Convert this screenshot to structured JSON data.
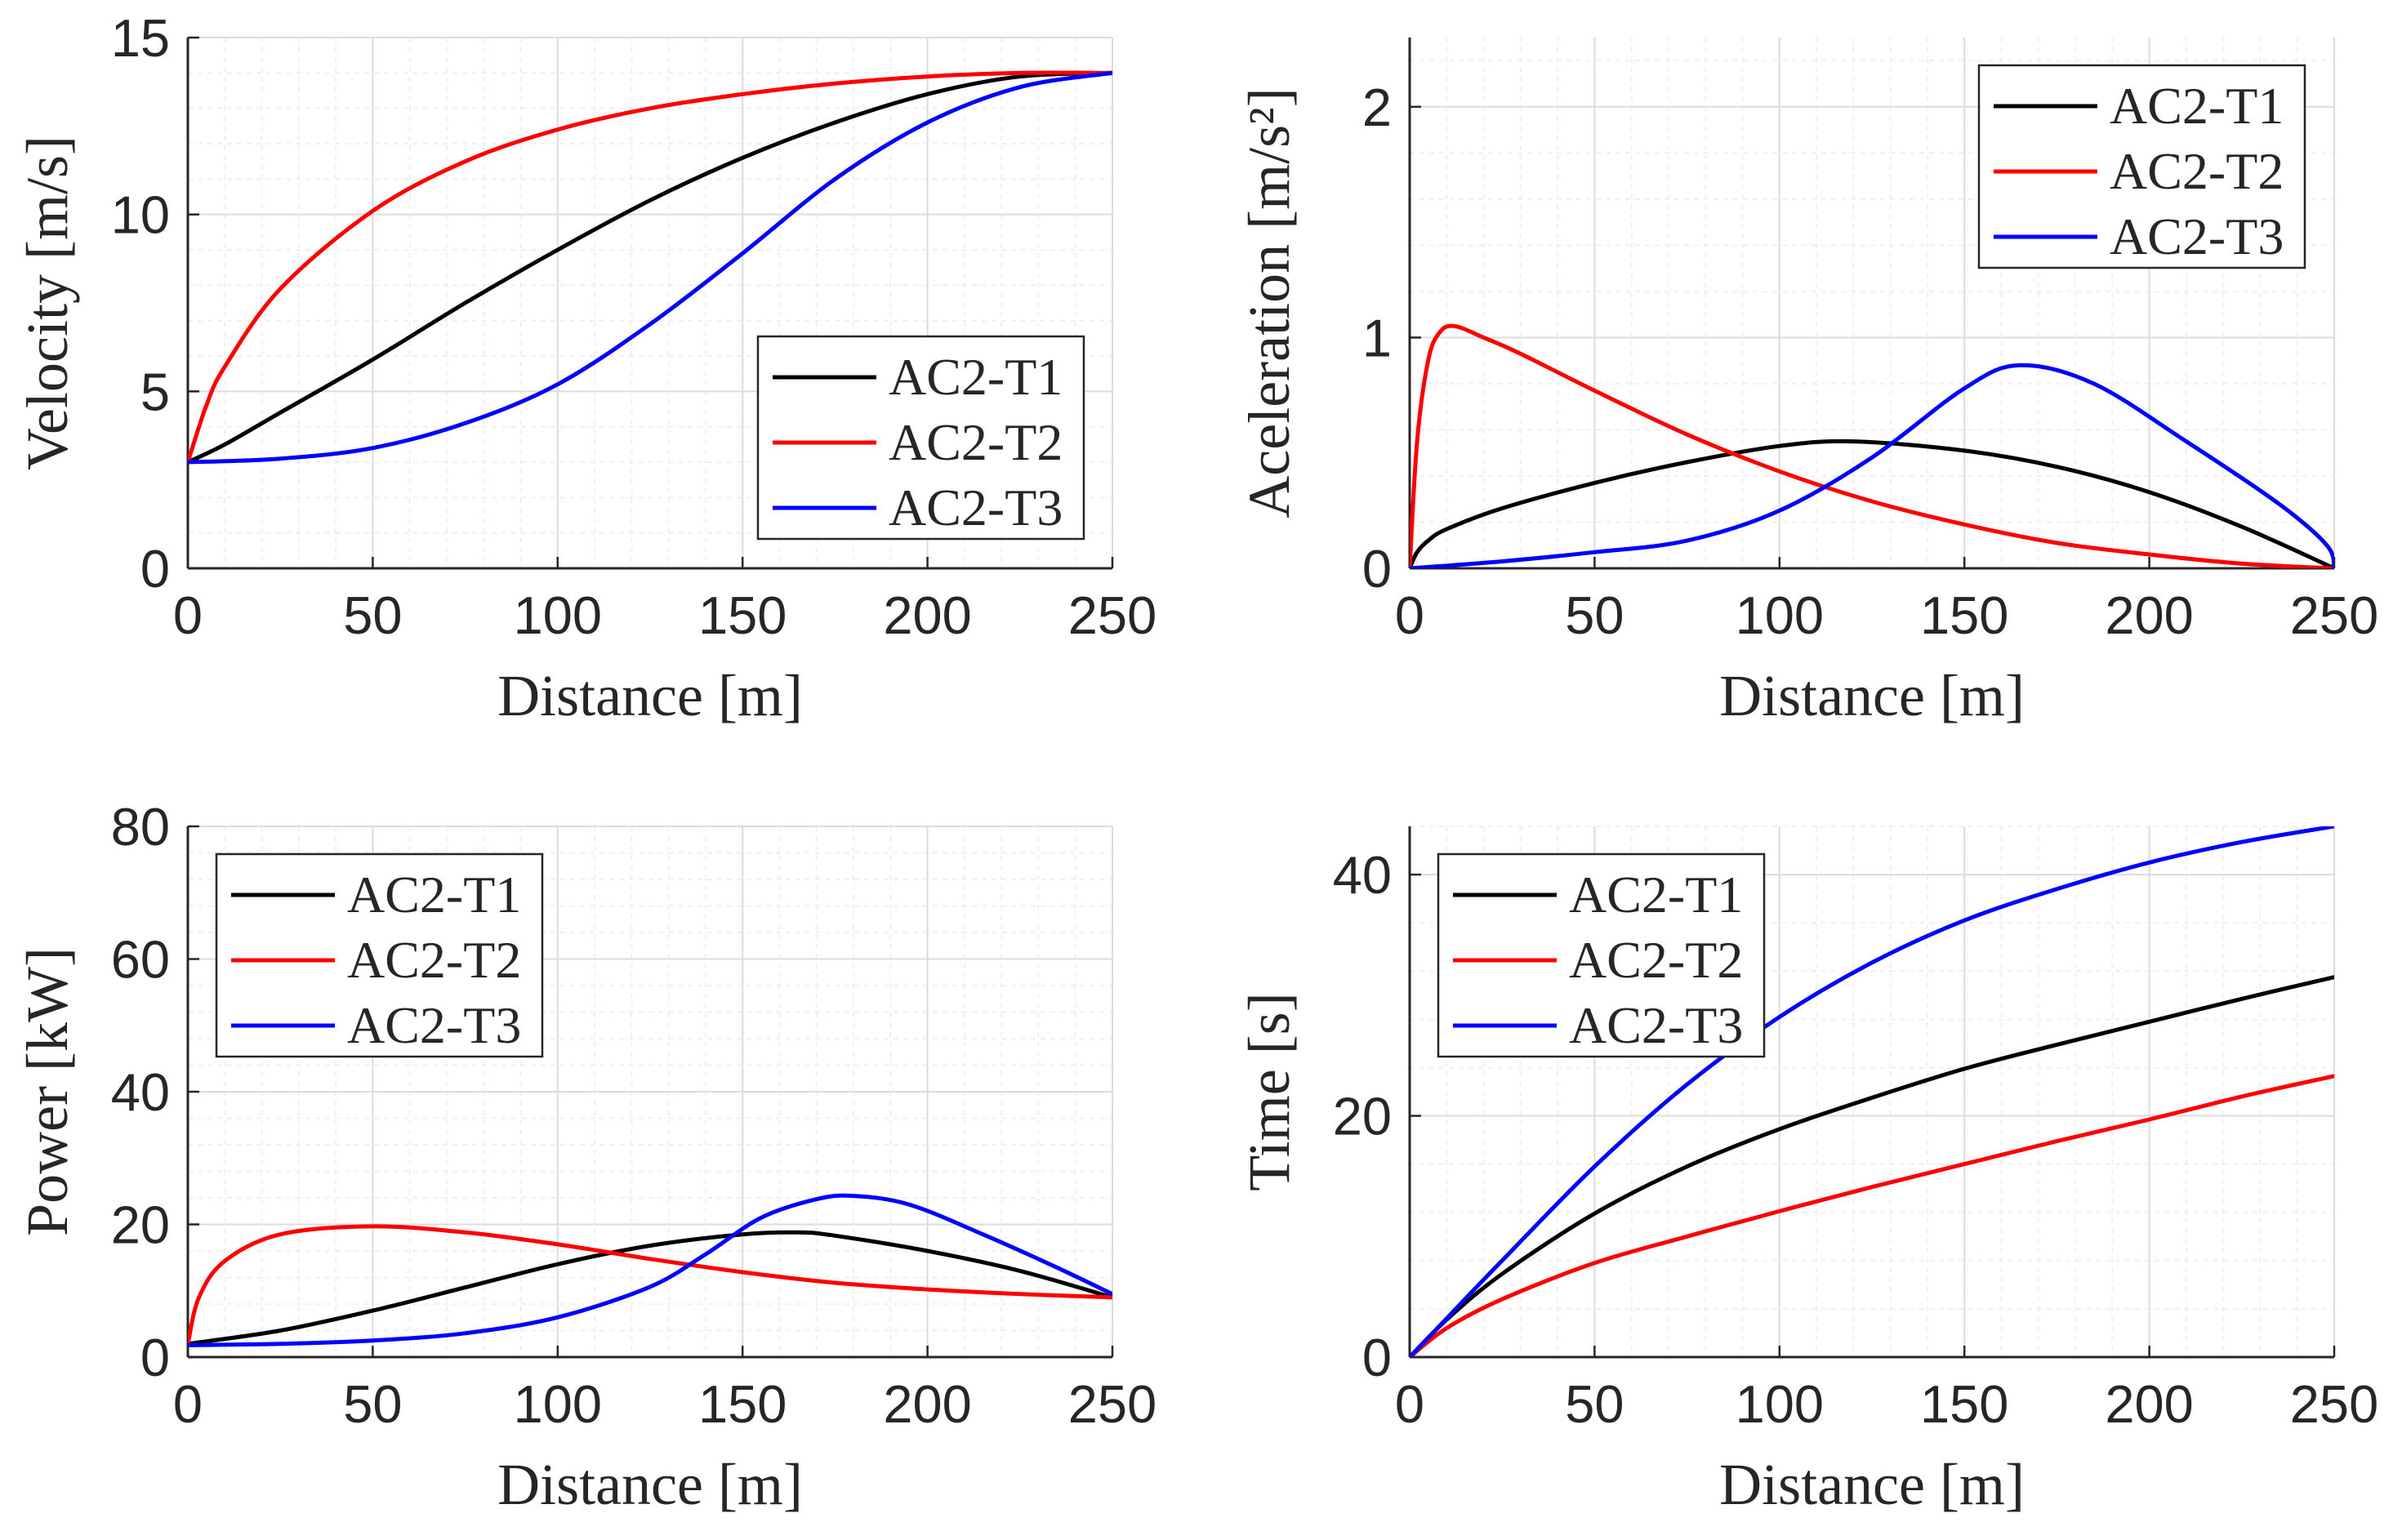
{
  "colors": {
    "AC2-T1": "#000000",
    "AC2-T2": "#ff0000",
    "AC2-T3": "#0000ff"
  },
  "chart_data": [
    {
      "id": "velocity",
      "type": "line",
      "xlabel": "Distance [m]",
      "ylabel": "Velocity [m/s]",
      "xlim": [
        0,
        250
      ],
      "ylim": [
        0,
        15
      ],
      "xticks": [
        0,
        50,
        100,
        150,
        200,
        250
      ],
      "yticks": [
        0,
        5,
        10,
        15
      ],
      "grid": true,
      "legend": "bottom-right",
      "series": [
        {
          "name": "AC2-T1",
          "color": "#000000",
          "x": [
            0,
            10,
            25,
            50,
            75,
            100,
            125,
            150,
            175,
            200,
            225,
            250
          ],
          "y": [
            3.0,
            3.5,
            4.4,
            5.9,
            7.5,
            9.0,
            10.4,
            11.6,
            12.6,
            13.4,
            13.9,
            14.0
          ]
        },
        {
          "name": "AC2-T2",
          "color": "#ff0000",
          "x": [
            0,
            5,
            10,
            25,
            50,
            75,
            100,
            125,
            150,
            175,
            200,
            225,
            250
          ],
          "y": [
            3.0,
            4.6,
            5.7,
            7.9,
            10.1,
            11.5,
            12.4,
            13.0,
            13.4,
            13.7,
            13.9,
            14.0,
            14.0
          ]
        },
        {
          "name": "AC2-T3",
          "color": "#0000ff",
          "x": [
            0,
            25,
            50,
            75,
            100,
            125,
            150,
            175,
            200,
            225,
            250
          ],
          "y": [
            3.0,
            3.1,
            3.4,
            4.1,
            5.2,
            6.9,
            8.9,
            11.0,
            12.6,
            13.6,
            14.0
          ]
        }
      ]
    },
    {
      "id": "acceleration",
      "type": "line",
      "xlabel": "Distance [m]",
      "ylabel": "Aceleration [m/s²]",
      "xlim": [
        0,
        250
      ],
      "ylim": [
        0,
        2.3
      ],
      "xticks": [
        0,
        50,
        100,
        150,
        200,
        250
      ],
      "yticks": [
        0,
        1,
        2
      ],
      "grid": true,
      "legend": "top-right",
      "series": [
        {
          "name": "AC2-T1",
          "color": "#000000",
          "x": [
            0,
            2,
            5,
            10,
            25,
            50,
            75,
            100,
            120,
            150,
            175,
            200,
            225,
            250
          ],
          "y": [
            0.0,
            0.07,
            0.12,
            0.17,
            0.26,
            0.37,
            0.46,
            0.53,
            0.55,
            0.51,
            0.44,
            0.33,
            0.18,
            0.0
          ]
        },
        {
          "name": "AC2-T2",
          "color": "#ff0000",
          "x": [
            0,
            2,
            5,
            8,
            12,
            20,
            30,
            50,
            75,
            100,
            125,
            150,
            175,
            200,
            225,
            250
          ],
          "y": [
            0.0,
            0.55,
            0.9,
            1.02,
            1.05,
            1.0,
            0.93,
            0.77,
            0.58,
            0.42,
            0.29,
            0.19,
            0.11,
            0.06,
            0.02,
            0.0
          ]
        },
        {
          "name": "AC2-T3",
          "color": "#0000ff",
          "x": [
            0,
            25,
            50,
            75,
            100,
            125,
            150,
            165,
            185,
            210,
            235,
            248,
            250
          ],
          "y": [
            0.0,
            0.03,
            0.07,
            0.12,
            0.25,
            0.48,
            0.78,
            0.88,
            0.8,
            0.55,
            0.28,
            0.1,
            0.0
          ]
        }
      ]
    },
    {
      "id": "power",
      "type": "line",
      "xlabel": "Distance [m]",
      "ylabel": "Power [kW]",
      "xlim": [
        0,
        250
      ],
      "ylim": [
        0,
        80
      ],
      "xticks": [
        0,
        50,
        100,
        150,
        200,
        250
      ],
      "yticks": [
        0,
        20,
        40,
        60,
        80
      ],
      "grid": true,
      "legend": "top-left",
      "series": [
        {
          "name": "AC2-T1",
          "color": "#000000",
          "x": [
            0,
            25,
            50,
            75,
            100,
            125,
            150,
            165,
            175,
            200,
            225,
            250
          ],
          "y": [
            2.0,
            4.0,
            7.0,
            10.5,
            14.0,
            16.8,
            18.5,
            18.8,
            18.3,
            16.0,
            13.0,
            9.0
          ]
        },
        {
          "name": "AC2-T2",
          "color": "#ff0000",
          "x": [
            0,
            3,
            10,
            25,
            50,
            75,
            100,
            125,
            150,
            175,
            200,
            225,
            250
          ],
          "y": [
            2.0,
            9.0,
            14.5,
            18.5,
            19.7,
            18.8,
            17.0,
            14.8,
            12.8,
            11.2,
            10.2,
            9.5,
            9.0
          ]
        },
        {
          "name": "AC2-T3",
          "color": "#0000ff",
          "x": [
            0,
            25,
            50,
            75,
            100,
            125,
            140,
            155,
            170,
            180,
            195,
            215,
            235,
            250
          ],
          "y": [
            1.8,
            2.0,
            2.5,
            3.6,
            6.0,
            10.6,
            15.5,
            21.0,
            23.8,
            24.3,
            23.0,
            18.5,
            13.5,
            9.5
          ]
        }
      ]
    },
    {
      "id": "time",
      "type": "line",
      "xlabel": "Distance [m]",
      "ylabel": "Time [s]",
      "xlim": [
        0,
        250
      ],
      "ylim": [
        0,
        44
      ],
      "xticks": [
        0,
        50,
        100,
        150,
        200,
        250
      ],
      "yticks": [
        0,
        20,
        40
      ],
      "grid": true,
      "legend": "top-left",
      "series": [
        {
          "name": "AC2-T1",
          "color": "#000000",
          "x": [
            0,
            10,
            25,
            50,
            75,
            100,
            125,
            150,
            175,
            200,
            225,
            250
          ],
          "y": [
            0,
            3.1,
            6.9,
            11.9,
            15.8,
            18.9,
            21.5,
            23.9,
            25.9,
            27.8,
            29.7,
            31.5
          ]
        },
        {
          "name": "AC2-T2",
          "color": "#ff0000",
          "x": [
            0,
            10,
            25,
            50,
            75,
            100,
            125,
            150,
            175,
            200,
            225,
            250
          ],
          "y": [
            0,
            2.4,
            4.8,
            7.8,
            10.0,
            12.1,
            14.1,
            16.0,
            17.9,
            19.7,
            21.6,
            23.3
          ]
        },
        {
          "name": "AC2-T3",
          "color": "#0000ff",
          "x": [
            0,
            10,
            25,
            50,
            75,
            100,
            125,
            150,
            175,
            200,
            225,
            250
          ],
          "y": [
            0,
            3.2,
            8.0,
            15.8,
            22.6,
            28.2,
            32.7,
            36.2,
            38.8,
            41.0,
            42.7,
            44.0
          ]
        }
      ]
    }
  ]
}
